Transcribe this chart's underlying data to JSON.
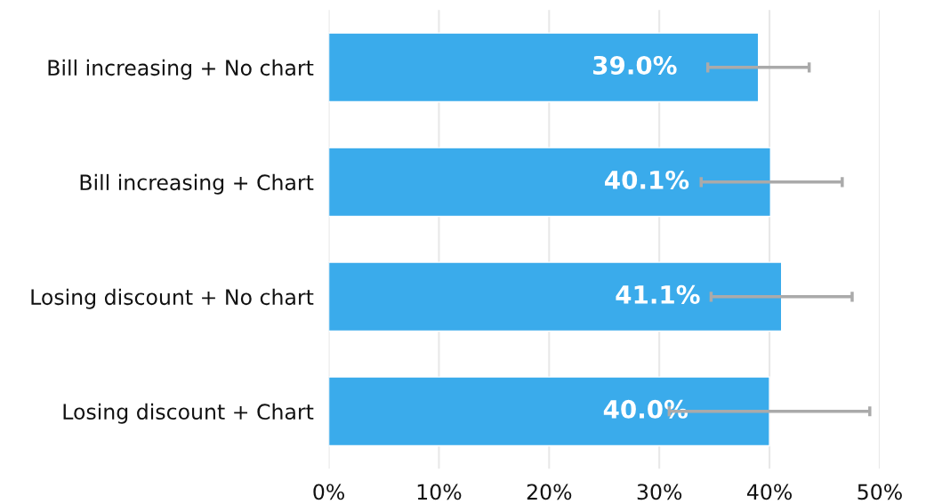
{
  "chart_data": {
    "type": "bar",
    "orientation": "horizontal",
    "categories": [
      "Bill increasing + No chart",
      "Bill increasing + Chart",
      "Losing discount + No chart",
      "Losing discount + Chart"
    ],
    "values": [
      39.0,
      40.1,
      41.1,
      40.0
    ],
    "value_labels": [
      "39.0%",
      "40.1%",
      "41.1%",
      "40.0%"
    ],
    "errors": [
      [
        34.4,
        43.6
      ],
      [
        33.8,
        46.6
      ],
      [
        34.7,
        47.5
      ],
      [
        30.9,
        49.1
      ]
    ],
    "color": "#3aabeb",
    "xlim": [
      0,
      50
    ],
    "xticks": [
      {
        "value": 0,
        "label": "0%"
      },
      {
        "value": 10,
        "label": "10%"
      },
      {
        "value": 20,
        "label": "20%"
      },
      {
        "value": 30,
        "label": "30%"
      },
      {
        "value": 40,
        "label": "40%"
      },
      {
        "value": 50,
        "label": "50%"
      }
    ],
    "grid": "x"
  }
}
